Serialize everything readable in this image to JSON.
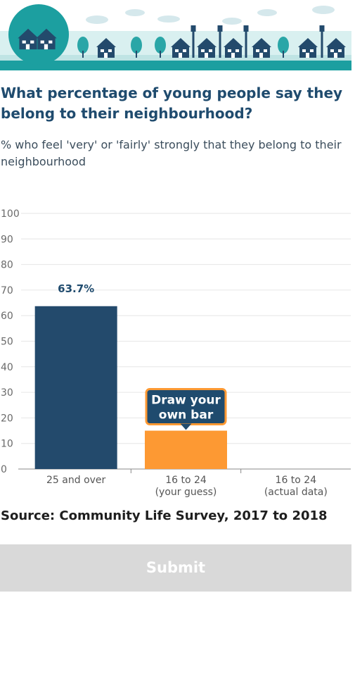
{
  "header": {
    "title": "What percentage of young people say they belong to their neighbourhood?",
    "subtitle": "% who feel 'very' or 'fairly' strongly that they belong to their neighbourhood"
  },
  "chart_data": {
    "type": "bar",
    "categories": [
      [
        "25 and over"
      ],
      [
        "16 to 24",
        "(your guess)"
      ],
      [
        "16 to 24",
        "(actual data)"
      ]
    ],
    "values": [
      63.7,
      15,
      null
    ],
    "data_labels": [
      "63.7%",
      "",
      ""
    ],
    "ylim": [
      0,
      100
    ],
    "yticks": [
      0,
      10,
      20,
      30,
      40,
      50,
      60,
      70,
      80,
      90,
      100
    ],
    "grid": true,
    "bar_colors": [
      "#234a6c",
      "#fd9933",
      "#fd9933"
    ],
    "drag_hint": [
      "Draw your",
      "own bar"
    ],
    "drag_hint_color": "#1f4b6e",
    "drag_hint_border": "#fd9933"
  },
  "footer": {
    "source": "Source: Community Life Survey, 2017 to 2018",
    "submit_label": "Submit"
  },
  "colors": {
    "title": "#1f4b6e",
    "banner_teal": "#1c9fa0",
    "banner_dark": "#234a6c"
  }
}
